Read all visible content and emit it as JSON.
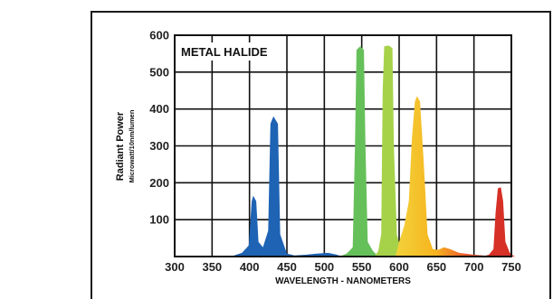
{
  "chart_data": {
    "type": "area",
    "title": "METAL HALIDE",
    "xlabel": "WAVELENGTH - NANOMETERS",
    "ylabel": "Radiant Power",
    "ylabel_sub": "Microwatt/10nm/lumen",
    "xlim": [
      300,
      750
    ],
    "ylim": [
      0,
      600
    ],
    "x_ticks": [
      "300",
      "350",
      "400",
      "450",
      "500",
      "550",
      "600",
      "650",
      "700",
      "750"
    ],
    "y_ticks": [
      "100",
      "200",
      "300",
      "400",
      "500",
      "600"
    ],
    "grid": true,
    "series": [
      {
        "color": "#1e63b4",
        "points": [
          [
            375,
            0
          ],
          [
            390,
            10
          ],
          [
            399,
            30
          ],
          [
            403,
            150
          ],
          [
            405,
            165
          ],
          [
            409,
            150
          ],
          [
            412,
            40
          ],
          [
            418,
            25
          ],
          [
            425,
            70
          ],
          [
            428,
            360
          ],
          [
            432,
            380
          ],
          [
            438,
            360
          ],
          [
            441,
            60
          ],
          [
            450,
            8
          ],
          [
            460,
            3
          ],
          [
            475,
            5
          ],
          [
            490,
            8
          ],
          [
            505,
            10
          ],
          [
            515,
            6
          ],
          [
            525,
            0
          ]
        ]
      },
      {
        "color": "#66c05a",
        "points": [
          [
            520,
            0
          ],
          [
            530,
            8
          ],
          [
            538,
            25
          ],
          [
            541,
            300
          ],
          [
            543,
            560
          ],
          [
            548,
            570
          ],
          [
            553,
            560
          ],
          [
            555,
            300
          ],
          [
            558,
            40
          ],
          [
            565,
            15
          ],
          [
            572,
            0
          ]
        ]
      },
      {
        "color": "#a6d24a",
        "points": [
          [
            567,
            0
          ],
          [
            572,
            15
          ],
          [
            576,
            60
          ],
          [
            578,
            450
          ],
          [
            580,
            570
          ],
          [
            586,
            572
          ],
          [
            591,
            565
          ],
          [
            593,
            300
          ],
          [
            597,
            60
          ],
          [
            603,
            15
          ],
          [
            610,
            0
          ]
        ]
      },
      {
        "color": "#f2a21f",
        "points": [
          [
            595,
            0
          ],
          [
            600,
            40
          ],
          [
            607,
            85
          ],
          [
            613,
            150
          ],
          [
            617,
            320
          ],
          [
            621,
            420
          ],
          [
            624,
            435
          ],
          [
            628,
            420
          ],
          [
            633,
            250
          ],
          [
            638,
            60
          ],
          [
            645,
            20
          ],
          [
            652,
            18
          ],
          [
            660,
            25
          ],
          [
            668,
            20
          ],
          [
            680,
            10
          ],
          [
            700,
            5
          ],
          [
            720,
            2
          ],
          [
            730,
            0
          ]
        ]
      },
      {
        "color": "#d63027",
        "points": [
          [
            710,
            0
          ],
          [
            720,
            5
          ],
          [
            726,
            20
          ],
          [
            729,
            120
          ],
          [
            732,
            185
          ],
          [
            736,
            188
          ],
          [
            739,
            150
          ],
          [
            742,
            40
          ],
          [
            748,
            10
          ],
          [
            752,
            3
          ],
          [
            755,
            0
          ]
        ]
      }
    ]
  }
}
